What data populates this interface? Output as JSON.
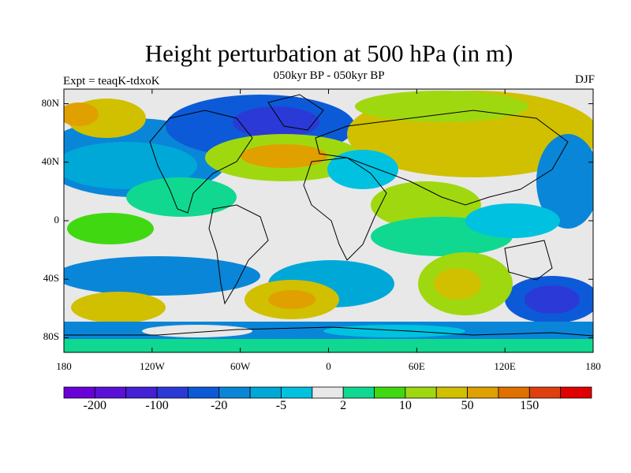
{
  "title": "Height perturbation at 500 hPa (in m)",
  "subtitle": "050kyr BP - 050kyr BP",
  "experiment": "Expt = teaqK-tdxoK",
  "season": "DJF",
  "map": {
    "projection": "cylindrical equidistant",
    "lon_range": [
      -180,
      180
    ],
    "lat_range": [
      -90,
      90
    ],
    "lat_tick_labels": [
      "80N",
      "40N",
      "0",
      "40S",
      "80S"
    ],
    "lat_tick_values": [
      80,
      40,
      0,
      -40,
      -80
    ],
    "lon_tick_labels": [
      "180",
      "120W",
      "60W",
      "0",
      "60E",
      "120E",
      "180"
    ],
    "lon_tick_values": [
      -180,
      -120,
      -60,
      0,
      60,
      120,
      180
    ]
  },
  "colorbar": {
    "colors": [
      "#6a00d8",
      "#5a10d8",
      "#4420d6",
      "#2b3ad6",
      "#0c5ad8",
      "#0a86d8",
      "#00a8d8",
      "#00c2e0",
      "#e8e8e8",
      "#10d890",
      "#40d810",
      "#a0d810",
      "#d0c000",
      "#e0a000",
      "#e07000",
      "#e04010",
      "#e00000"
    ],
    "labels": [
      "-200",
      "-100",
      "-20",
      "-5",
      "2",
      "10",
      "50",
      "150"
    ]
  }
}
